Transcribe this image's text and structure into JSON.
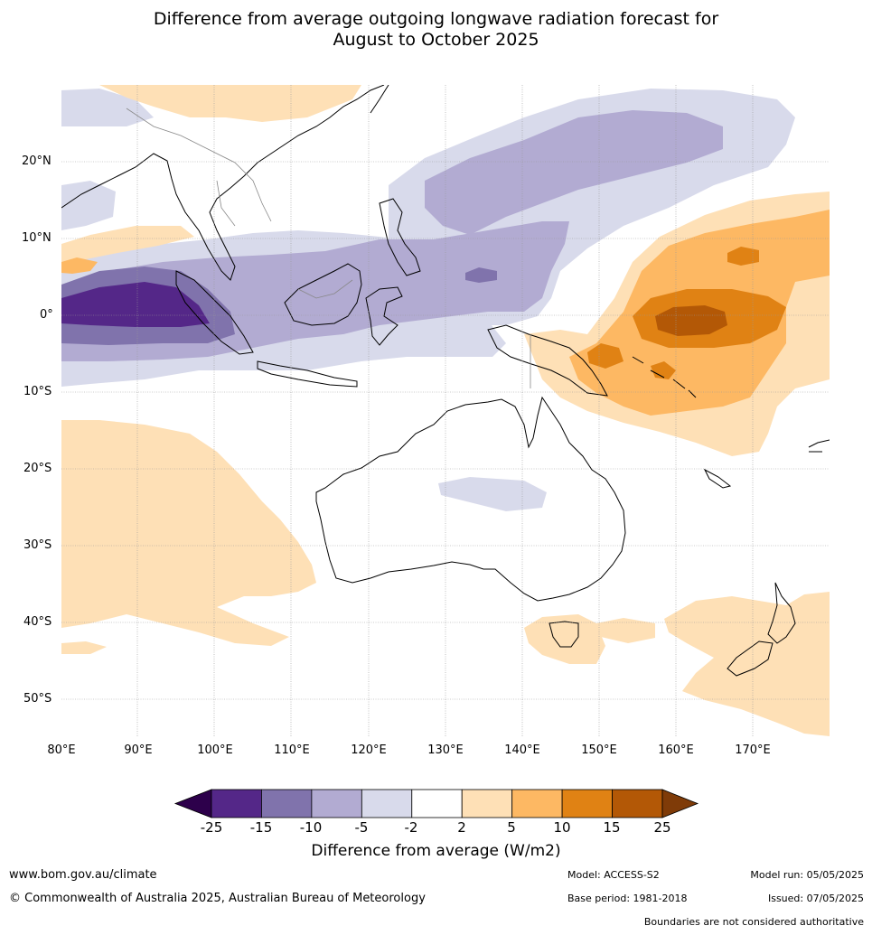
{
  "title": {
    "line1": "Difference from average outgoing longwave radiation forecast for",
    "line2": "August to October 2025"
  },
  "map": {
    "lon_range": [
      80,
      180
    ],
    "lat_range": [
      -55,
      30
    ],
    "lat_ticks": [
      "20°N",
      "10°N",
      "0°",
      "10°S",
      "20°S",
      "30°S",
      "40°S",
      "50°S"
    ],
    "lon_ticks": [
      "80°E",
      "90°E",
      "100°E",
      "110°E",
      "120°E",
      "130°E",
      "140°E",
      "150°E",
      "160°E",
      "170°E"
    ],
    "gridlines": true,
    "coastline_color": "#000000"
  },
  "colorbar": {
    "tick_labels": [
      "-25",
      "-15",
      "-10",
      "-5",
      "-2",
      "2",
      "5",
      "10",
      "15",
      "25"
    ],
    "colors": [
      "#2d004b",
      "#542788",
      "#8073ac",
      "#b2abd2",
      "#d8daeb",
      "#ffffff",
      "#fee0b6",
      "#fdb863",
      "#e08214",
      "#b35806",
      "#7f3b08"
    ],
    "label": "Difference from average (W/m2)"
  },
  "footer": {
    "website": "www.bom.gov.au/climate",
    "copyright": "© Commonwealth of Australia 2025, Australian Bureau of Meteorology",
    "model": "Model: ACCESS-S2",
    "base_period": "Base period: 1981-2018",
    "model_run": "Model run: 05/05/2025",
    "issued": "Issued: 07/05/2025",
    "disclaimer": "Boundaries are not considered authoritative"
  }
}
